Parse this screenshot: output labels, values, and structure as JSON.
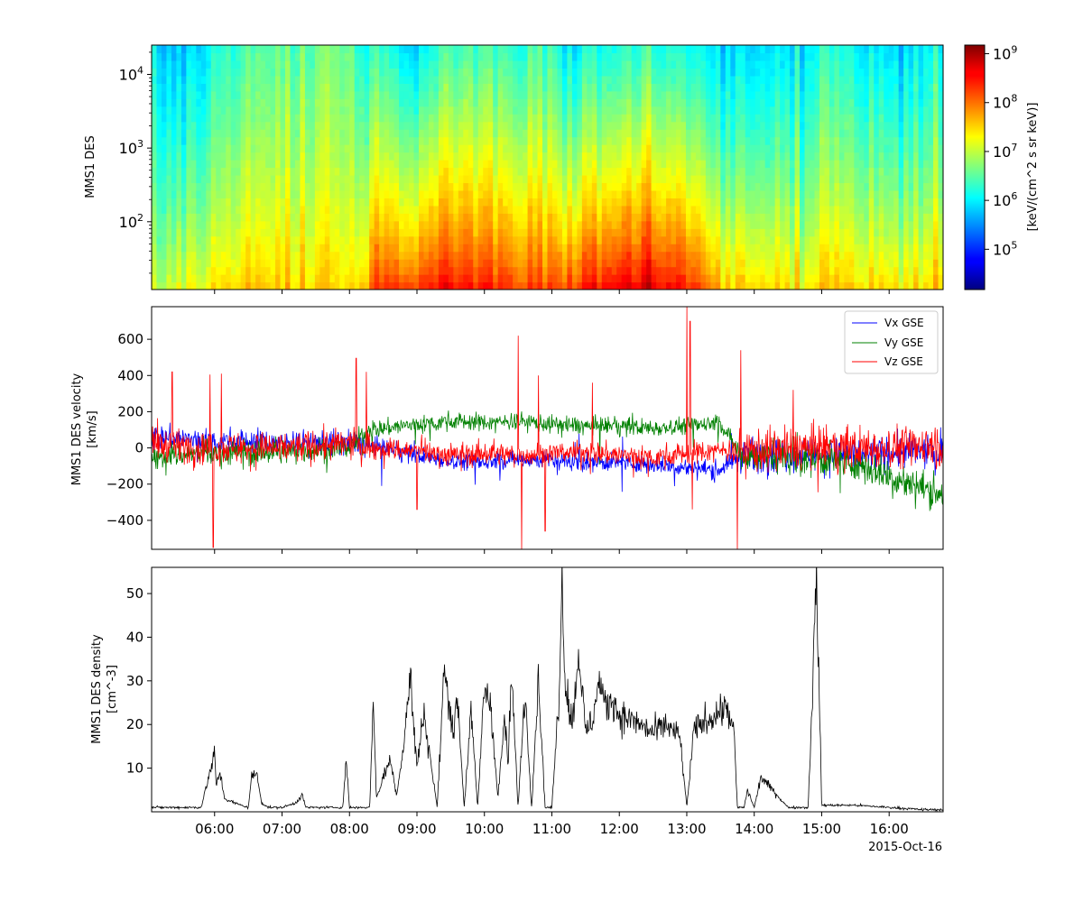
{
  "figure": {
    "date_label": "2015-Oct-16",
    "time_tick_labels": [
      "06:00",
      "07:00",
      "08:00",
      "09:00",
      "10:00",
      "11:00",
      "12:00",
      "13:00",
      "14:00",
      "15:00",
      "16:00"
    ]
  },
  "chart_data": [
    {
      "type": "heatmap",
      "ylabel": "MMS1 DES",
      "yscale": "log",
      "ylim": [
        12,
        25000
      ],
      "x_range": [
        "05:04",
        "16:48"
      ],
      "ytick_labels": [
        "10^2",
        "10^3",
        "10^4"
      ],
      "colorbar": {
        "label": "[keV/(cm^2 s sr keV)]",
        "scale": "log",
        "range": [
          15000.0,
          1500000000.0
        ],
        "tick_labels": [
          "10^5",
          "10^6",
          "10^7",
          "10^8",
          "10^9"
        ],
        "colormap": "jet"
      },
      "background_keyframes": {
        "hours": [
          5.07,
          5.5,
          6.0,
          7.0,
          8.0,
          8.4,
          9.0,
          9.5,
          10.0,
          11.0,
          11.2,
          12.0,
          12.5,
          13.0,
          13.7,
          14.0,
          15.0,
          16.0,
          16.8
        ],
        "high_energy_flux_log": [
          6.0,
          5.6,
          6.1,
          6.6,
          6.5,
          6.3,
          6.0,
          6.4,
          6.5,
          6.2,
          6.1,
          6.2,
          6.3,
          6.3,
          5.7,
          5.9,
          6.1,
          5.9,
          6.0
        ],
        "low_energy_flux_log": [
          7.0,
          7.1,
          7.4,
          7.7,
          7.4,
          8.3,
          8.5,
          8.6,
          8.6,
          8.1,
          8.4,
          8.7,
          8.8,
          8.7,
          7.4,
          7.6,
          7.5,
          7.5,
          7.5
        ]
      }
    },
    {
      "type": "line",
      "ylabel": "MMS1 DES velocity",
      "ylabel_units": "[km/s]",
      "ylim": [
        -560,
        780
      ],
      "ytick_values": [
        -400,
        -200,
        0,
        200,
        400,
        600
      ],
      "ytick_labels": [
        "−400",
        "−200",
        "0",
        "200",
        "400",
        "600"
      ],
      "legend_position": "top-right",
      "series": [
        {
          "name": "Vx GSE",
          "color": "#0000ff",
          "hours": [
            5.07,
            6.0,
            7.0,
            8.0,
            8.5,
            9.0,
            9.5,
            10.0,
            10.5,
            11.0,
            11.5,
            12.0,
            12.5,
            13.0,
            13.5,
            13.8,
            14.5,
            15.5,
            16.3,
            16.8
          ],
          "trend_kms": [
            60,
            40,
            30,
            30,
            0,
            -40,
            -70,
            -80,
            -60,
            -70,
            -80,
            -80,
            -90,
            -110,
            -120,
            -40,
            -30,
            -40,
            -20,
            -30
          ]
        },
        {
          "name": "Vy GSE",
          "color": "#008000",
          "hours": [
            5.07,
            6.0,
            7.0,
            8.0,
            8.3,
            9.0,
            9.5,
            10.0,
            10.5,
            11.0,
            11.5,
            12.0,
            12.5,
            13.0,
            13.5,
            13.8,
            14.5,
            15.5,
            16.3,
            16.8
          ],
          "trend_kms": [
            -40,
            -30,
            -20,
            0,
            100,
            130,
            150,
            140,
            150,
            130,
            120,
            120,
            110,
            125,
            140,
            -40,
            -50,
            -80,
            -200,
            -250
          ]
        },
        {
          "name": "Vz GSE",
          "color": "#ff0000",
          "hours": [
            5.07,
            6.0,
            7.0,
            8.0,
            9.0,
            9.5,
            10.0,
            10.5,
            11.0,
            11.5,
            12.0,
            12.5,
            13.0,
            13.5,
            13.8,
            14.5,
            15.5,
            16.3,
            16.8
          ],
          "trend_kms": [
            20,
            0,
            0,
            20,
            -20,
            -40,
            -30,
            -40,
            -30,
            -20,
            -40,
            -50,
            -30,
            -10,
            -20,
            0,
            0,
            10,
            20
          ],
          "spikes": [
            {
              "hour": 5.37,
              "value": 420
            },
            {
              "hour": 5.93,
              "value": 405
            },
            {
              "hour": 5.98,
              "value": -550
            },
            {
              "hour": 6.1,
              "value": 410
            },
            {
              "hour": 8.1,
              "value": 495
            },
            {
              "hour": 8.25,
              "value": 420
            },
            {
              "hour": 9.0,
              "value": -340
            },
            {
              "hour": 10.5,
              "value": 620
            },
            {
              "hour": 10.55,
              "value": -560
            },
            {
              "hour": 10.8,
              "value": 400
            },
            {
              "hour": 10.9,
              "value": -460
            },
            {
              "hour": 11.6,
              "value": 360
            },
            {
              "hour": 13.0,
              "value": 780
            },
            {
              "hour": 13.05,
              "value": 700
            },
            {
              "hour": 13.08,
              "value": -340
            },
            {
              "hour": 13.8,
              "value": 540
            },
            {
              "hour": 13.75,
              "value": -560
            },
            {
              "hour": 14.58,
              "value": 320
            }
          ]
        }
      ]
    },
    {
      "type": "line",
      "ylabel": "MMS1 DES density",
      "ylabel_units": "[cm^-3]",
      "ylim": [
        0,
        56
      ],
      "ytick_values": [
        10,
        20,
        30,
        40,
        50
      ],
      "ytick_labels": [
        "10",
        "20",
        "30",
        "40",
        "50"
      ],
      "series": [
        {
          "color": "#000000",
          "hours": [
            5.07,
            5.8,
            5.98,
            6.0,
            6.02,
            6.08,
            6.15,
            6.3,
            6.5,
            6.55,
            6.62,
            6.7,
            6.8,
            7.0,
            7.2,
            7.3,
            7.35,
            7.5,
            7.9,
            7.95,
            8.0,
            8.3,
            8.35,
            8.4,
            8.5,
            8.6,
            8.7,
            8.8,
            8.9,
            9.0,
            9.1,
            9.3,
            9.4,
            9.45,
            9.55,
            9.6,
            9.7,
            9.8,
            9.9,
            10.0,
            10.1,
            10.2,
            10.3,
            10.35,
            10.4,
            10.5,
            10.6,
            10.7,
            10.8,
            10.9,
            11.0,
            11.1,
            11.15,
            11.2,
            11.3,
            11.4,
            11.5,
            11.6,
            11.7,
            11.8,
            11.9,
            12.0,
            12.2,
            12.5,
            12.7,
            12.9,
            13.0,
            13.1,
            13.2,
            13.4,
            13.6,
            13.7,
            13.75,
            13.85,
            13.9,
            14.0,
            14.1,
            14.5,
            14.8,
            14.9,
            14.92,
            15.0,
            15.5,
            16.0,
            16.5,
            16.8
          ],
          "values": [
            1.0,
            1.0,
            12.0,
            14.0,
            6.0,
            9.0,
            3.0,
            2.0,
            1.0,
            8.0,
            9.0,
            2.0,
            1.0,
            1.0,
            2.0,
            4.0,
            1.0,
            1.0,
            1.0,
            12.0,
            1.0,
            1.0,
            26.0,
            3.0,
            8.0,
            12.0,
            4.0,
            15.0,
            31.0,
            10.0,
            23.0,
            1.0,
            32.0,
            28.0,
            18.0,
            27.0,
            1.0,
            23.0,
            1.0,
            29.0,
            24.0,
            3.0,
            22.0,
            10.0,
            32.0,
            1.0,
            28.0,
            1.0,
            31.0,
            1.0,
            1.0,
            25.0,
            52.0,
            30.0,
            20.0,
            37.0,
            18.0,
            21.0,
            30.0,
            24.0,
            26.0,
            22.0,
            21.0,
            18.0,
            20.0,
            17.0,
            1.0,
            18.0,
            20.0,
            22.0,
            24.0,
            18.0,
            1.0,
            1.0,
            5.0,
            1.0,
            8.0,
            1.0,
            1.0,
            44.0,
            56.0,
            1.5,
            1.5,
            1.0,
            0.5,
            0.5
          ]
        }
      ]
    }
  ]
}
